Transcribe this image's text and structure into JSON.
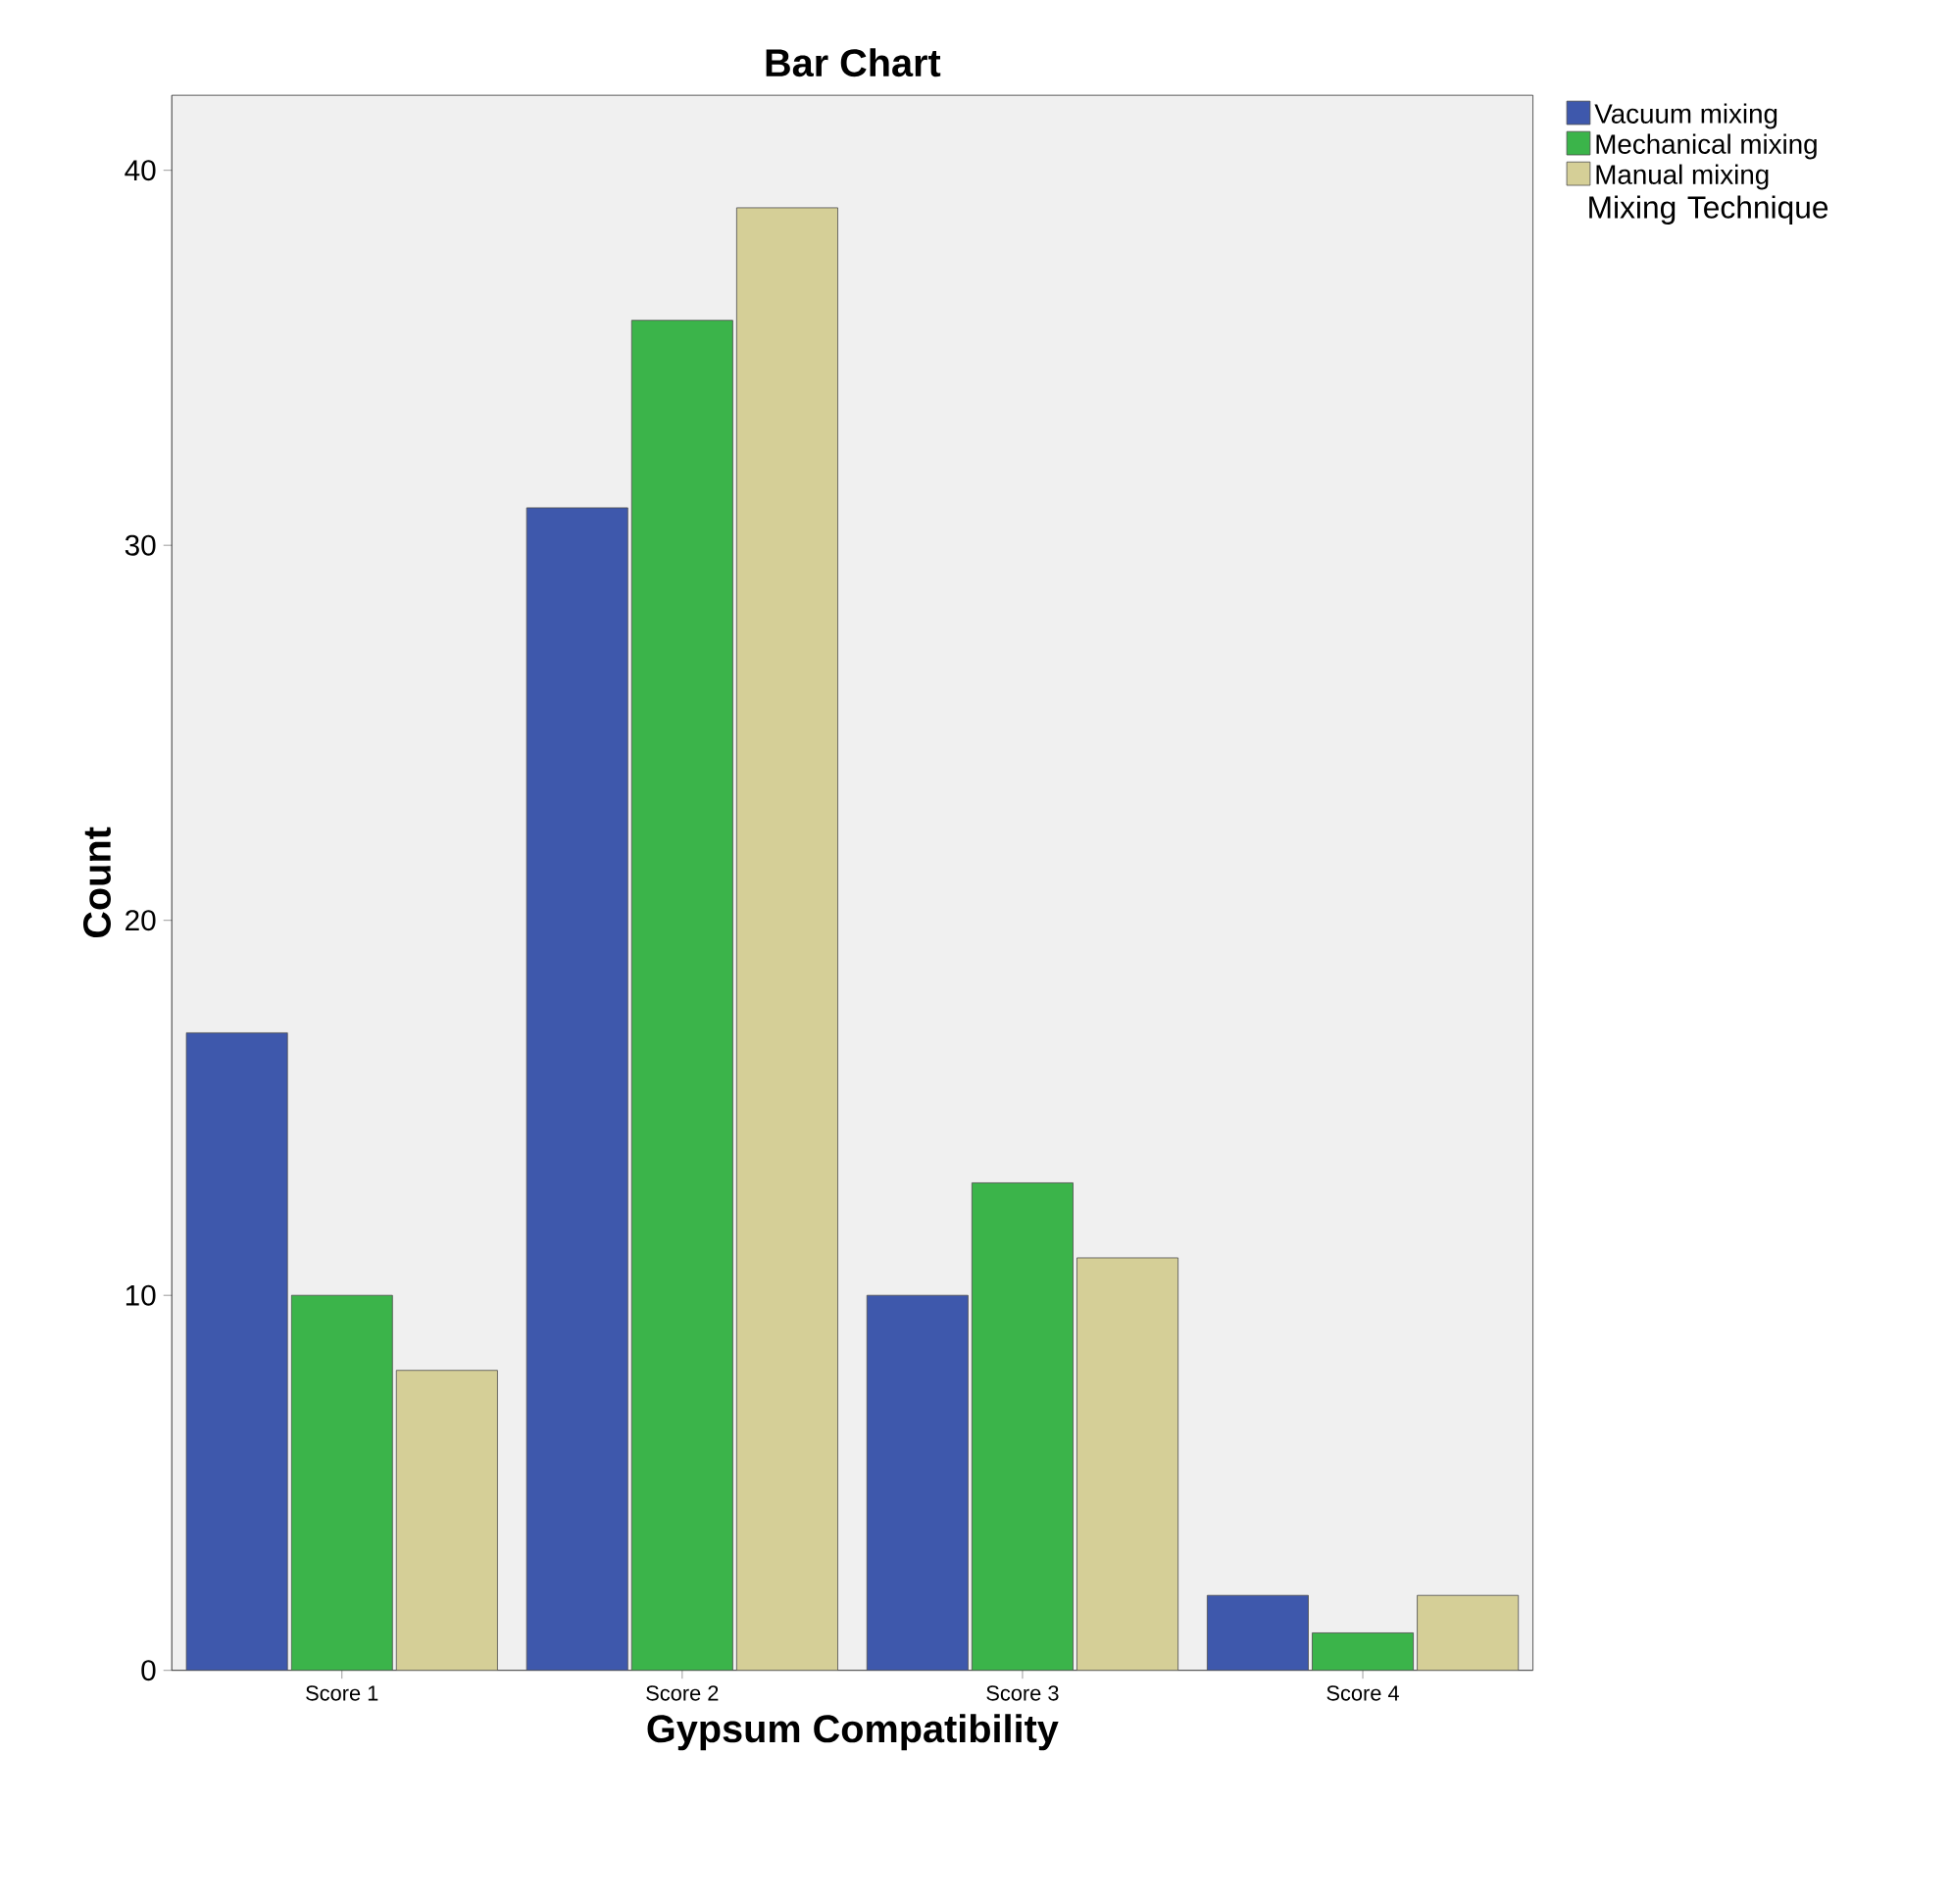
{
  "chart_data": {
    "type": "bar",
    "title": "Bar Chart",
    "xlabel": "Gypsum Compatibility",
    "ylabel": "Count",
    "legend_title": "Mixing Technique",
    "categories": [
      "Score 1",
      "Score 2",
      "Score 3",
      "Score 4"
    ],
    "series": [
      {
        "name": "Vacuum mixing",
        "color": "#3e58ac",
        "values": [
          17,
          31,
          10,
          2
        ]
      },
      {
        "name": "Mechanical mixing",
        "color": "#3bb44a",
        "values": [
          10,
          36,
          13,
          1
        ]
      },
      {
        "name": "Manual mixing",
        "color": "#d5cf97",
        "values": [
          8,
          39,
          11,
          2
        ]
      }
    ],
    "ylim": [
      0,
      42
    ],
    "yticks": [
      0,
      10,
      20,
      30,
      40
    ],
    "grid": false,
    "legend": "top right"
  }
}
